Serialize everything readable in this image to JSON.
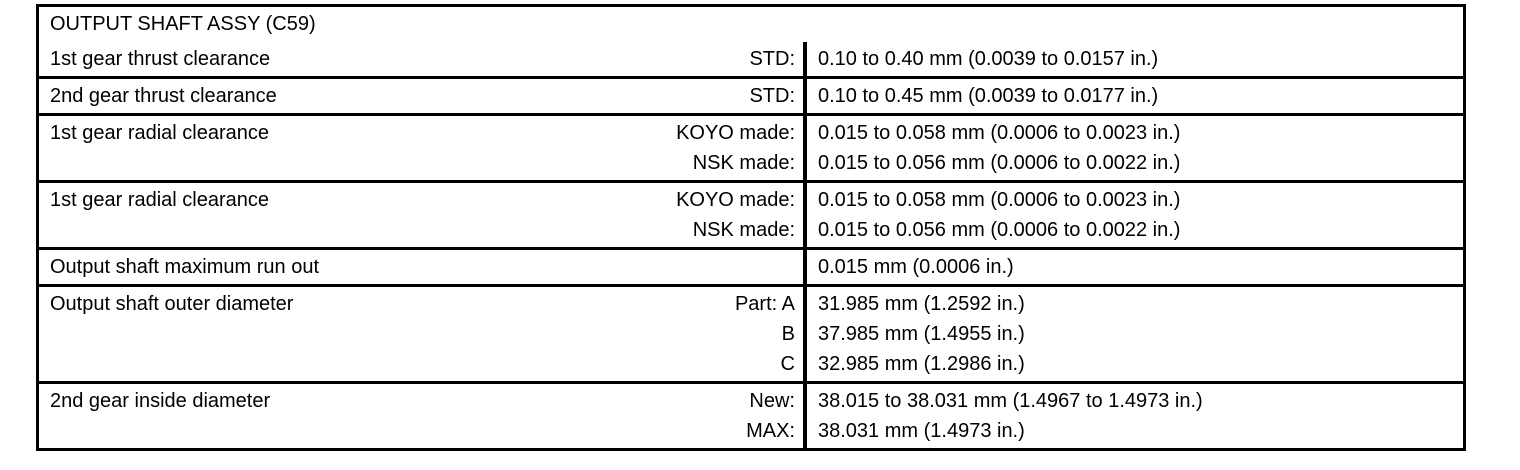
{
  "table": {
    "title": "OUTPUT SHAFT ASSY (C59)",
    "rows": [
      {
        "label": "1st gear thrust clearance",
        "entries": [
          {
            "sub": "STD:",
            "value": "0.10 to 0.40 mm (0.0039 to 0.0157 in.)"
          }
        ]
      },
      {
        "label": "2nd gear thrust clearance",
        "entries": [
          {
            "sub": "STD:",
            "value": "0.10 to 0.45 mm (0.0039 to 0.0177 in.)"
          }
        ]
      },
      {
        "label": "1st gear radial clearance",
        "entries": [
          {
            "sub": "KOYO made:",
            "value": "0.015 to 0.058 mm (0.0006 to 0.0023 in.)"
          },
          {
            "sub": "NSK made:",
            "value": "0.015 to 0.056 mm (0.0006 to 0.0022 in.)"
          }
        ]
      },
      {
        "label": "1st gear radial clearance",
        "entries": [
          {
            "sub": "KOYO made:",
            "value": "0.015 to 0.058 mm (0.0006 to 0.0023 in.)"
          },
          {
            "sub": "NSK made:",
            "value": "0.015 to 0.056 mm (0.0006 to 0.0022 in.)"
          }
        ]
      },
      {
        "label": "Output shaft maximum run out",
        "entries": [
          {
            "sub": "",
            "value": "0.015 mm (0.0006 in.)"
          }
        ]
      },
      {
        "label": "Output shaft outer diameter",
        "entries": [
          {
            "sub": "Part: A",
            "value": "31.985 mm (1.2592 in.)"
          },
          {
            "sub": "B",
            "value": "37.985 mm (1.4955 in.)"
          },
          {
            "sub": "C",
            "value": "32.985 mm (1.2986 in.)"
          }
        ]
      },
      {
        "label": "2nd gear inside diameter",
        "entries": [
          {
            "sub": "New:",
            "value": "38.015 to 38.031 mm (1.4967 to 1.4973 in.)"
          },
          {
            "sub": "MAX:",
            "value": "38.031 mm (1.4973 in.)"
          }
        ]
      }
    ]
  }
}
